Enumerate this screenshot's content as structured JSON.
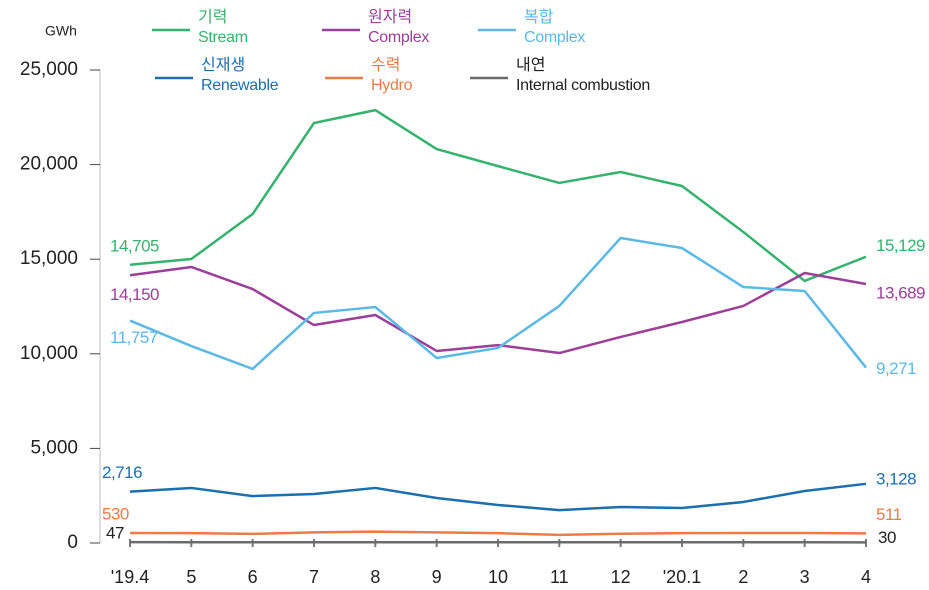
{
  "chart_data": {
    "type": "line",
    "y_label": "GWh",
    "categories": [
      "'19.4",
      "5",
      "6",
      "7",
      "8",
      "9",
      "10",
      "11",
      "12",
      "'20.1",
      "2",
      "3",
      "4"
    ],
    "ylim": [
      0,
      25000
    ],
    "yticks": [
      0,
      {
        "value": 5000,
        "label": "5,000"
      },
      {
        "value": 10000,
        "label": "10,000"
      },
      {
        "value": 15000,
        "label": "15,000"
      },
      {
        "value": 20000,
        "label": "20,000"
      },
      {
        "value": 25000,
        "label": "25,000"
      }
    ],
    "series": [
      {
        "name": "기력",
        "subname": "Stream",
        "color": "#35b36e",
        "values": [
          14705,
          15010,
          17390,
          22200,
          22880,
          20820,
          19920,
          19030,
          19610,
          18870,
          16440,
          13850,
          15129
        ],
        "value_labels": [
          "14,705",
          null,
          null,
          null,
          null,
          null,
          null,
          null,
          null,
          null,
          null,
          null,
          "15,129"
        ]
      },
      {
        "name": "원자력",
        "subname": "Complex",
        "color": "#9c3f98",
        "values": [
          14150,
          14590,
          13420,
          11520,
          12050,
          10150,
          10460,
          10040,
          10890,
          11680,
          12530,
          14270,
          13689
        ],
        "value_labels": [
          "14,150",
          null,
          null,
          null,
          null,
          null,
          null,
          null,
          null,
          null,
          null,
          null,
          "13,689"
        ]
      },
      {
        "name": "복합",
        "subname": "Complex",
        "color": "#5cb8e4",
        "values": [
          11757,
          10410,
          9200,
          12160,
          12470,
          9780,
          10310,
          12530,
          16120,
          15590,
          13530,
          13320,
          9271
        ],
        "value_labels": [
          "11,757",
          null,
          null,
          null,
          null,
          null,
          null,
          null,
          null,
          null,
          null,
          null,
          "9,271"
        ]
      },
      {
        "name": "신재생",
        "subname": "Renewable",
        "color": "#1b6fad",
        "values": [
          2716,
          2910,
          2480,
          2590,
          2910,
          2380,
          2010,
          1740,
          1900,
          1850,
          2170,
          2750,
          3128
        ],
        "value_labels": [
          "2,716",
          null,
          null,
          null,
          null,
          null,
          null,
          null,
          null,
          null,
          null,
          null,
          "3,128"
        ]
      },
      {
        "name": "수력",
        "subname": "Hydro",
        "color": "#ec7b45",
        "values": [
          530,
          520,
          480,
          560,
          600,
          560,
          520,
          430,
          490,
          520,
          530,
          530,
          511
        ],
        "value_labels": [
          "530",
          null,
          null,
          null,
          null,
          null,
          null,
          null,
          null,
          null,
          null,
          null,
          "511"
        ]
      },
      {
        "name": "내연",
        "subname": "Internal combustion",
        "color": "#6b6b6b",
        "values": [
          47,
          40,
          40,
          40,
          40,
          40,
          40,
          40,
          40,
          40,
          40,
          40,
          30
        ],
        "value_labels": [
          "47",
          null,
          null,
          null,
          null,
          null,
          null,
          null,
          null,
          null,
          null,
          null,
          "30"
        ]
      }
    ]
  }
}
